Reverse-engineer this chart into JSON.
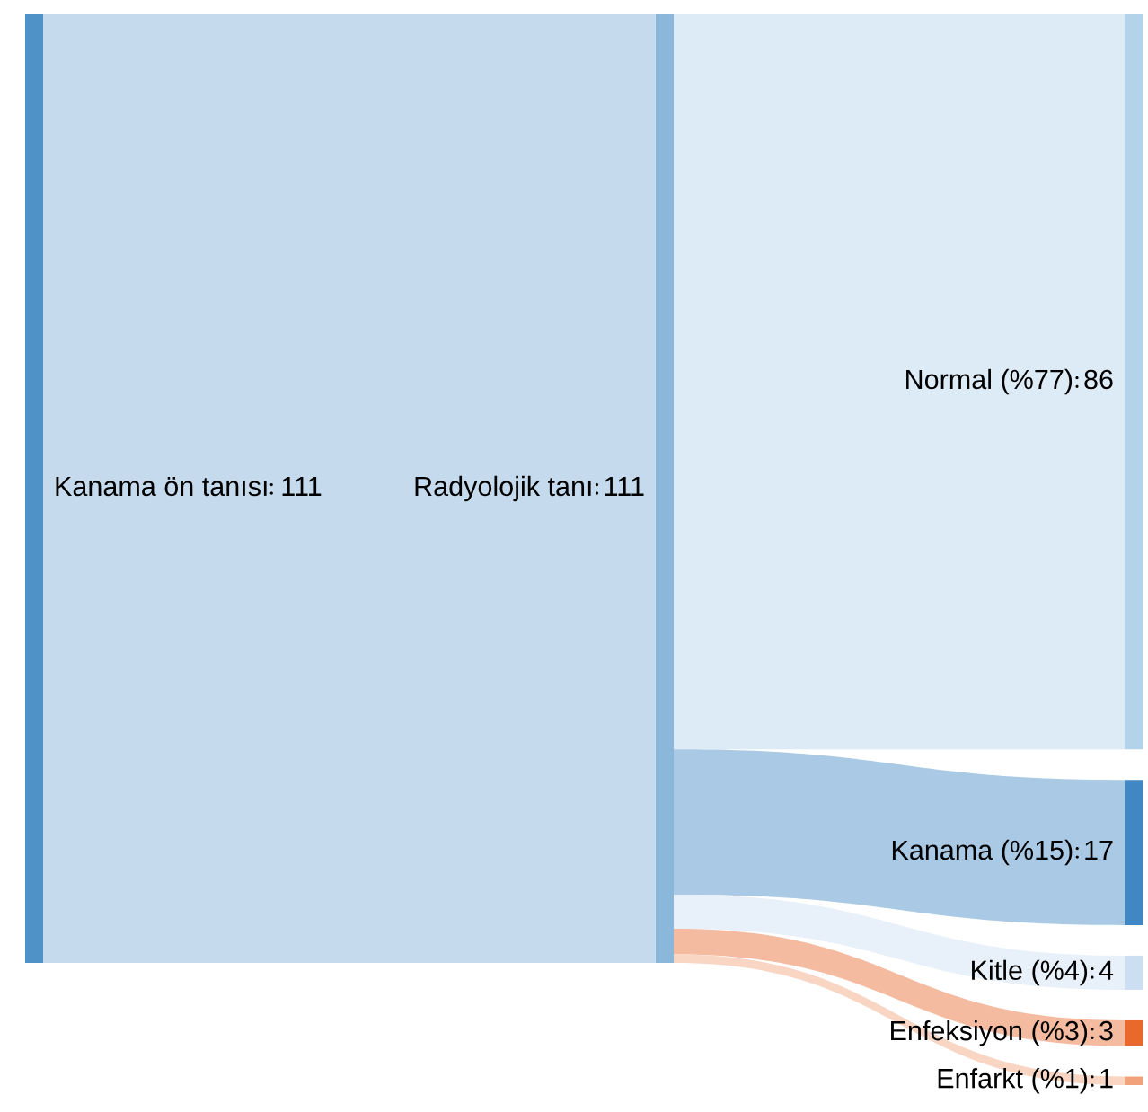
{
  "chart_data": {
    "type": "other",
    "categories": [
      "Kanama ön tanısı",
      "Radyolojik tanı",
      "Normal (%77)",
      "Kanama (%15)",
      "Kitle (%4)",
      "Enfeksiyon (%3)",
      "Enfarkt (%1)"
    ],
    "data_labels": true,
    "values": [
      111,
      111,
      86,
      17,
      4,
      3,
      1
    ],
    "colors": [
      "#c5dbed",
      "#c5dbed",
      "#ddebf6",
      "#a9c9e4",
      "#e8f0f9",
      "#f5bba0",
      "#f9d5c3"
    ]
  }
}
